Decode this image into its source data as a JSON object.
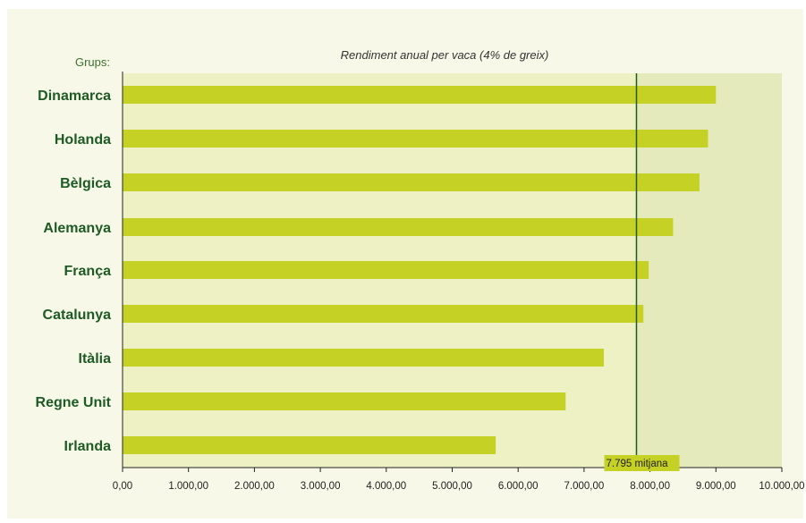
{
  "chart_data": {
    "type": "bar",
    "orientation": "horizontal",
    "title": "Rendiment anual per vaca (4% de greix)",
    "group_label": "Grups:",
    "categories": [
      "Dinamarca",
      "Holanda",
      "Bèlgica",
      "Alemanya",
      "França",
      "Catalunya",
      "Itàlia",
      "Regne Unit",
      "Irlanda"
    ],
    "values": [
      9000,
      8880,
      8750,
      8350,
      7980,
      7900,
      7300,
      6720,
      5660
    ],
    "xlim": [
      0,
      10000
    ],
    "x_ticks": [
      "0,00",
      "1.000,00",
      "2.000,00",
      "3.000,00",
      "4.000,00",
      "5.000,00",
      "6.000,00",
      "7.000,00",
      "8.000,00",
      "9.000,00",
      "10.000,00"
    ],
    "reference_line": {
      "value": 7795,
      "label": "7.795 mitjana"
    },
    "grid": false,
    "colors": {
      "bar": "#c5d125",
      "plot_background_below_mean": "#eef1c4",
      "plot_background_above_mean": "#e5eabc",
      "panel_background": "#f7f8e7",
      "category_text": "#1d5a24",
      "group_label_text": "#3d6e31",
      "reference_line": "#1f5a1f",
      "reference_label_background": "#c5d125"
    }
  }
}
